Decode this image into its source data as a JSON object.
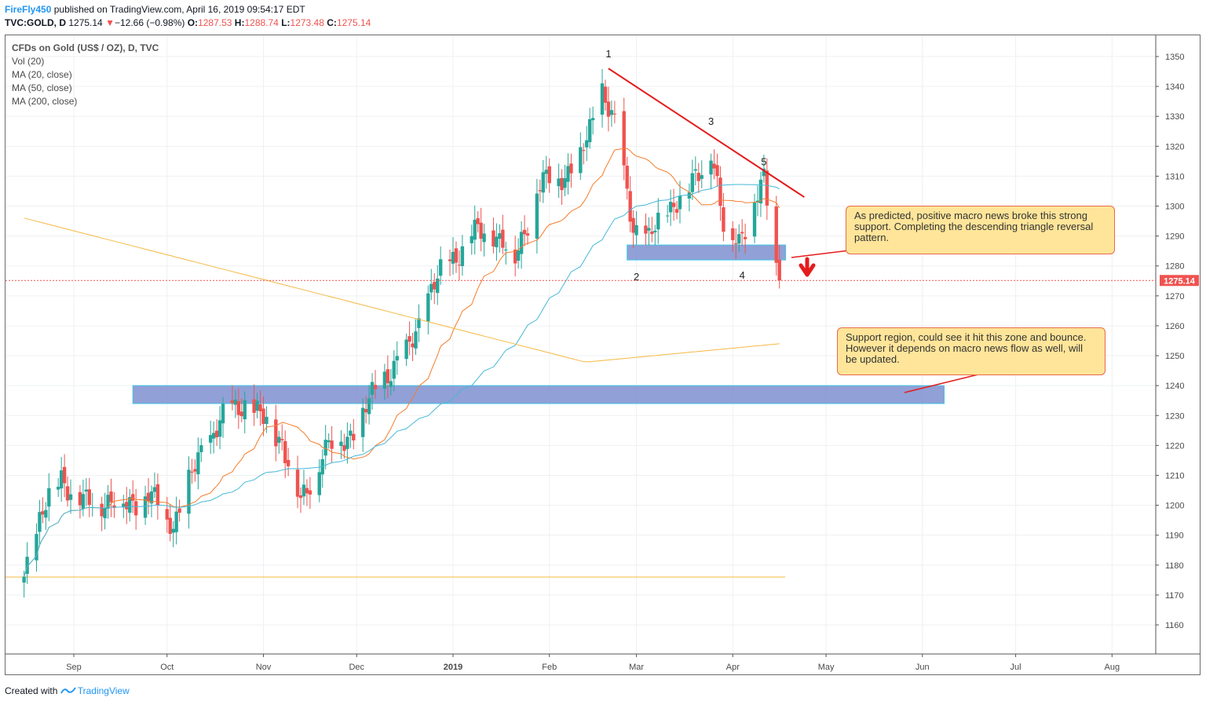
{
  "header": {
    "author": "FireFly450",
    "published": "published on TradingView.com, April 16, 2019 09:54:17 EDT",
    "symbol": "TVC:GOLD, D",
    "last": "1275.14",
    "arrow": "▼",
    "change": "−12.66 (−0.98%)",
    "o_label": "O:",
    "o_value": "1287.53",
    "h_label": "H:",
    "h_value": "1288.74",
    "l_label": "L:",
    "l_value": "1273.48",
    "c_label": "C:",
    "c_value": "1275.14"
  },
  "legend": {
    "items": [
      "CFDs on Gold (US$ / OZ), D, TVC",
      "Vol (20)",
      "MA (20, close)",
      "MA (50, close)",
      "MA (200, close)"
    ]
  },
  "annotations": {
    "note_predicted": "As predicted, positive macro news broke this strong support. Completing the descending triangle reversal pattern.",
    "note_support": "Support region, could see it hit this zone and bounce. However it depends on macro news flow as well, will be updated.",
    "point_labels": [
      "1",
      "2",
      "3",
      "4",
      "5"
    ]
  },
  "footer": {
    "created": "Created with",
    "brand": "TradingView"
  },
  "colors": {
    "up": "#26a69a",
    "down": "#ef5350",
    "ma20": "#f57c2b",
    "ma50": "#45b8d8",
    "ma200": "#f5b942",
    "zone": "#7e8fcf",
    "trendline": "#e51c1c",
    "note_bg": "#ffe599",
    "note_border": "#e86a4a"
  },
  "chart_data": {
    "type": "candlestick",
    "title": "CFDs on Gold (US$ / OZ), D, TVC",
    "price_axis_ticks": [
      1160,
      1170,
      1180,
      1190,
      1200,
      1210,
      1220,
      1230,
      1240,
      1250,
      1260,
      1270,
      1280,
      1290,
      1300,
      1310,
      1320,
      1330,
      1340,
      1350
    ],
    "time_axis_ticks": [
      "Sep",
      "Oct",
      "Nov",
      "Dec",
      "2019",
      "Feb",
      "Mar",
      "Apr",
      "May",
      "Jun",
      "Jul",
      "Aug"
    ],
    "ylim": [
      1150,
      1357
    ],
    "last_price": 1275.14,
    "horizontal_line": 1176,
    "pivots": [
      {
        "label": "1",
        "date": "2019-02-20",
        "price": 1346
      },
      {
        "label": "2",
        "date": "2019-03-01",
        "price": 1281
      },
      {
        "label": "3",
        "date": "2019-03-25",
        "price": 1324
      },
      {
        "label": "4",
        "date": "2019-04-04",
        "price": 1281
      },
      {
        "label": "5",
        "date": "2019-04-11",
        "price": 1310
      }
    ],
    "trendline": {
      "from": {
        "date": "2019-02-20",
        "price": 1346
      },
      "to": {
        "date": "2019-04-24",
        "price": 1303
      }
    },
    "zones": [
      {
        "name": "triangle support",
        "from": "2019-02-26",
        "to": "2019-04-18",
        "low": 1282,
        "high": 1287
      },
      {
        "name": "support region",
        "from": "2018-09-20",
        "to": "2019-06-08",
        "low": 1234,
        "high": 1240
      }
    ],
    "daily_closes": [
      [
        "2018-08-16",
        1178
      ],
      [
        "2018-08-21",
        1195
      ],
      [
        "2018-08-28",
        1210
      ],
      [
        "2018-09-04",
        1200
      ],
      [
        "2018-09-11",
        1202
      ],
      [
        "2018-09-18",
        1200
      ],
      [
        "2018-09-25",
        1204
      ],
      [
        "2018-10-01",
        1194
      ],
      [
        "2018-10-05",
        1198
      ],
      [
        "2018-10-12",
        1218
      ],
      [
        "2018-10-18",
        1228
      ],
      [
        "2018-10-26",
        1235
      ],
      [
        "2018-11-01",
        1228
      ],
      [
        "2018-11-07",
        1222
      ],
      [
        "2018-11-13",
        1200
      ],
      [
        "2018-11-20",
        1218
      ],
      [
        "2018-11-27",
        1222
      ],
      [
        "2018-12-03",
        1230
      ],
      [
        "2018-12-10",
        1244
      ],
      [
        "2018-12-17",
        1250
      ],
      [
        "2018-12-24",
        1270
      ],
      [
        "2018-12-31",
        1282
      ],
      [
        "2019-01-07",
        1290
      ],
      [
        "2019-01-14",
        1292
      ],
      [
        "2019-01-21",
        1282
      ],
      [
        "2019-01-28",
        1306
      ],
      [
        "2019-02-04",
        1310
      ],
      [
        "2019-02-11",
        1315
      ],
      [
        "2019-02-18",
        1340
      ],
      [
        "2019-02-22",
        1326
      ],
      [
        "2019-02-28",
        1294
      ],
      [
        "2019-03-05",
        1288
      ],
      [
        "2019-03-11",
        1300
      ],
      [
        "2019-03-18",
        1305
      ],
      [
        "2019-03-25",
        1320
      ],
      [
        "2019-03-29",
        1292
      ],
      [
        "2019-04-03",
        1290
      ],
      [
        "2019-04-08",
        1300
      ],
      [
        "2019-04-11",
        1308
      ],
      [
        "2019-04-16",
        1275.14
      ]
    ]
  }
}
